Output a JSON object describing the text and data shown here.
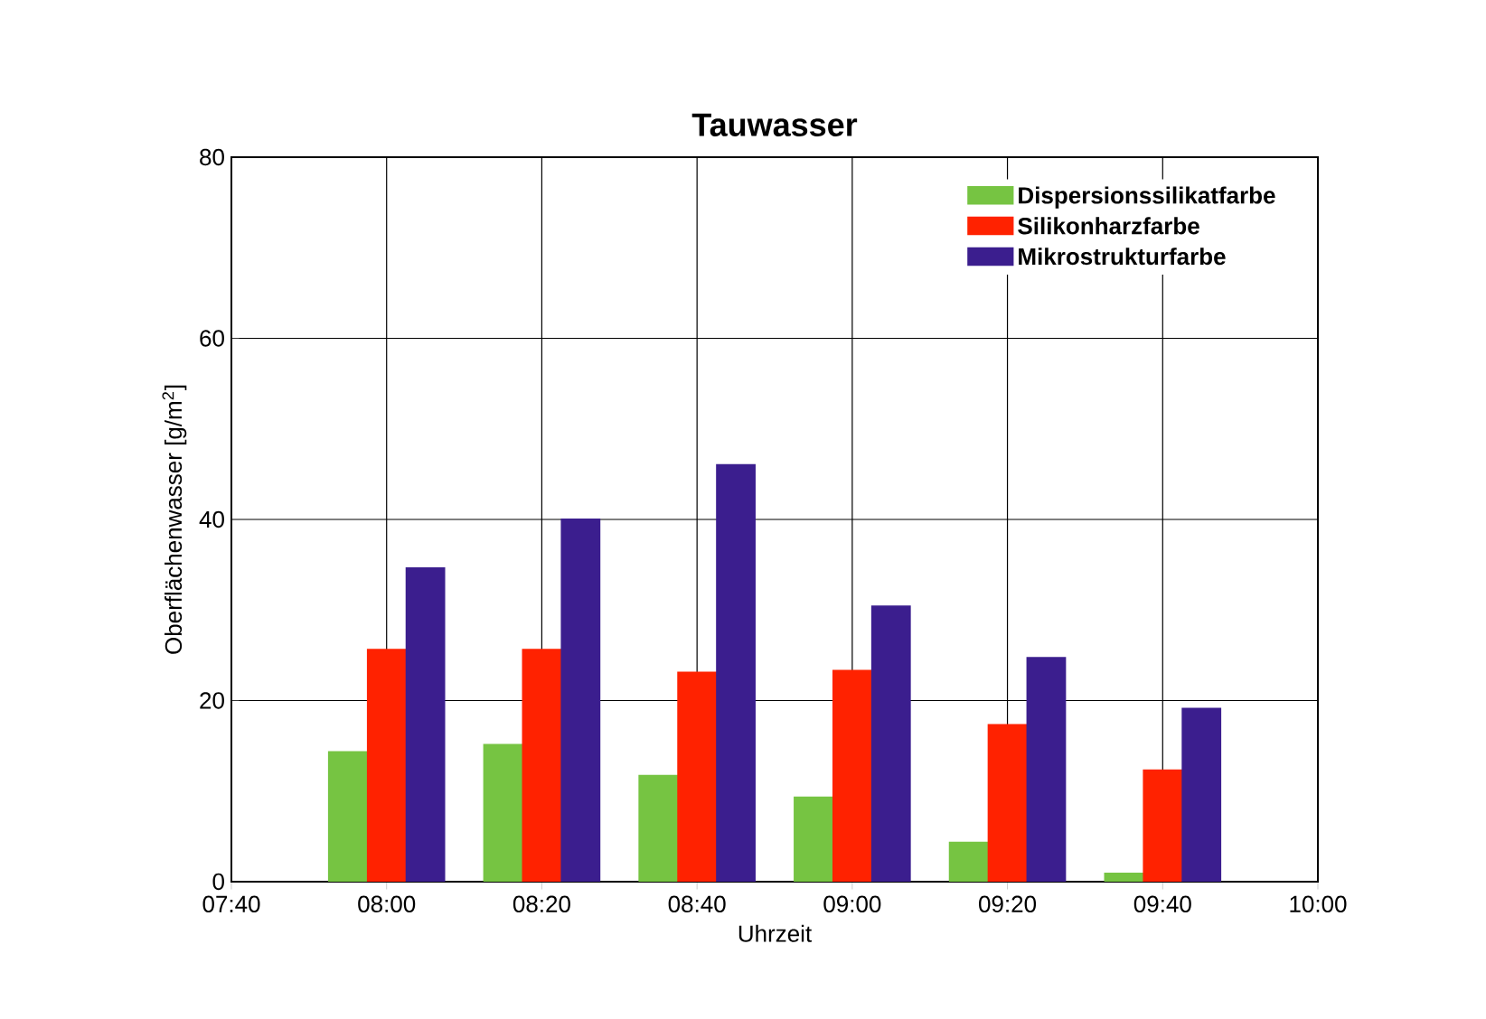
{
  "chart_data": {
    "type": "bar",
    "title": "Tauwasser",
    "xlabel": "Uhrzeit",
    "ylabel": "Oberflächenwasser [g/m$^{2}$]",
    "x": [
      8,
      8.3333,
      8.6667,
      9,
      9.3333,
      9.6667
    ],
    "xlim": [
      7.6667,
      10
    ],
    "xticks": [
      {
        "value": 7.6667,
        "label": "07:40"
      },
      {
        "value": 8,
        "label": "08:00"
      },
      {
        "value": 8.3333,
        "label": "08:20"
      },
      {
        "value": 8.6667,
        "label": "08:40"
      },
      {
        "value": 9,
        "label": "09:00"
      },
      {
        "value": 9.3333,
        "label": "09:20"
      },
      {
        "value": 9.6667,
        "label": "09:40"
      },
      {
        "value": 10,
        "label": "10:00"
      }
    ],
    "ylim": [
      0,
      80
    ],
    "yticks": [
      0,
      20,
      40,
      60,
      80
    ],
    "series": [
      {
        "name": "Dispersionssilikatfarbe",
        "color": "#76c442",
        "values": [
          14.4,
          15.2,
          11.8,
          9.4,
          4.4,
          1
        ]
      },
      {
        "name": "Silikonharzfarbe",
        "color": "#ff2200",
        "values": [
          25.7,
          25.7,
          23.2,
          23.4,
          17.4,
          12.4
        ]
      },
      {
        "name": "Mikrostrukturfarbe",
        "color": "#3b1e8e",
        "values": [
          34.7,
          40.1,
          46.1,
          30.5,
          24.8,
          19.2
        ]
      }
    ],
    "grid": true,
    "legend": "top right"
  }
}
